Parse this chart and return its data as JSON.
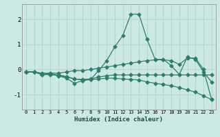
{
  "xlabel": "Humidex (Indice chaleur)",
  "line_color": "#2e7d6e",
  "bg_color": "#cce8e3",
  "grid_color": "#aacfc9",
  "xlim": [
    -0.5,
    23.5
  ],
  "ylim": [
    -1.6,
    2.6
  ],
  "yticks": [
    -1,
    0,
    1,
    2
  ],
  "xticks": [
    0,
    1,
    2,
    3,
    4,
    5,
    6,
    7,
    8,
    9,
    10,
    11,
    12,
    13,
    14,
    15,
    16,
    17,
    18,
    19,
    20,
    21,
    22,
    23
  ],
  "series": {
    "y1": [
      -0.1,
      -0.1,
      -0.2,
      -0.15,
      -0.25,
      -0.35,
      -0.55,
      -0.45,
      -0.4,
      -0.05,
      0.35,
      0.9,
      1.35,
      2.2,
      2.2,
      1.2,
      0.4,
      0.4,
      0.15,
      -0.2,
      0.5,
      0.4,
      -0.1,
      -0.5
    ],
    "y2": [
      -0.1,
      -0.1,
      -0.15,
      -0.15,
      -0.15,
      -0.1,
      -0.05,
      -0.05,
      0.0,
      0.05,
      0.1,
      0.15,
      0.2,
      0.25,
      0.3,
      0.35,
      0.38,
      0.38,
      0.35,
      0.2,
      0.45,
      0.45,
      0.0,
      -1.2
    ],
    "y3": [
      -0.1,
      -0.1,
      -0.2,
      -0.2,
      -0.22,
      -0.28,
      -0.38,
      -0.42,
      -0.4,
      -0.38,
      -0.35,
      -0.35,
      -0.38,
      -0.4,
      -0.42,
      -0.5,
      -0.55,
      -0.6,
      -0.65,
      -0.72,
      -0.82,
      -0.9,
      -1.05,
      -1.2
    ],
    "y4": [
      -0.1,
      -0.1,
      -0.2,
      -0.2,
      -0.25,
      -0.3,
      -0.38,
      -0.4,
      -0.38,
      -0.3,
      -0.25,
      -0.22,
      -0.22,
      -0.22,
      -0.22,
      -0.22,
      -0.22,
      -0.22,
      -0.22,
      -0.22,
      -0.22,
      -0.22,
      -0.22,
      -0.22
    ]
  }
}
